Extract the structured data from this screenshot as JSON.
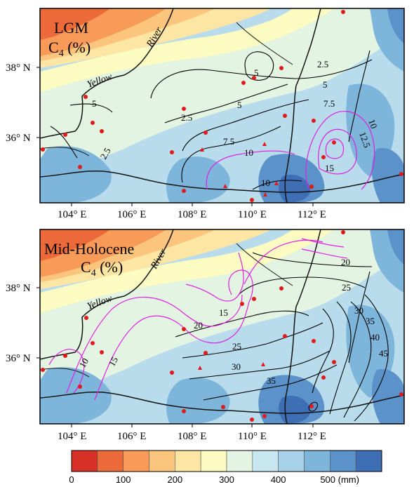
{
  "panels": [
    {
      "title_line1": "LGM",
      "title_line2": "C",
      "title_sub": "4",
      "title_unit": " (%)",
      "river_label_1": "River",
      "river_label_2": "Yellow",
      "black_contours": [
        "2.5",
        "5",
        "5",
        "5",
        "2.5",
        "2.5",
        "5",
        "5",
        "7.5",
        "7.5",
        "10",
        "10"
      ],
      "magenta_contours": [
        "10",
        "12.5",
        "15"
      ]
    },
    {
      "title_line1": "Mid-Holocene",
      "title_line2": "C",
      "title_sub": "4",
      "title_unit": " (%)",
      "river_label_1": "River",
      "river_label_2": "Yellow",
      "black_contours": [
        "20",
        "25",
        "25",
        "30",
        "30",
        "35",
        "35",
        "40",
        "45"
      ],
      "magenta_contours": [
        "10",
        "15",
        "15",
        "20"
      ]
    }
  ],
  "lat_labels": [
    "38° N",
    "36° N"
  ],
  "lon_labels": [
    "104° E",
    "106° E",
    "108° E",
    "110° E",
    "112° E"
  ],
  "colorbar": {
    "colors": [
      "#d73027",
      "#ec6a3a",
      "#f89a58",
      "#fcc57e",
      "#fde6a3",
      "#fbfbc2",
      "#e4f4e3",
      "#c7e6ef",
      "#a6d1e8",
      "#7eb5da",
      "#5b92c9",
      "#3e6eb4"
    ],
    "tick_labels": [
      "0",
      "100",
      "200",
      "300",
      "400",
      "500 (mm)"
    ]
  }
}
